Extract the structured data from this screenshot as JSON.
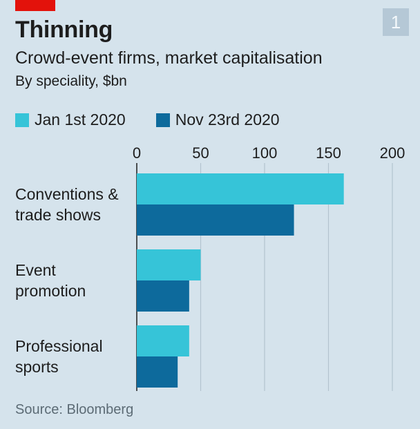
{
  "header": {
    "title": "Thinning",
    "subtitle": "Crowd-event firms, market capitalisation",
    "unit": "By speciality, $bn",
    "badge": "1"
  },
  "source": "Source: Bloomberg",
  "colors": {
    "series1": "#36c4d8",
    "series2": "#0d6a9c",
    "background": "#d5e3ec",
    "accent": "#e3120b"
  },
  "chart_data": {
    "type": "bar",
    "orientation": "horizontal",
    "title": "Thinning",
    "subtitle": "Crowd-event firms, market capitalisation",
    "units": "By speciality, $bn",
    "categories": [
      "Conventions & trade shows",
      "Event promotion",
      "Professional sports"
    ],
    "category_lines": [
      [
        "Conventions &",
        "trade shows"
      ],
      [
        "Event",
        "promotion"
      ],
      [
        "Professional",
        "sports"
      ]
    ],
    "series": [
      {
        "name": "Jan 1st 2020",
        "values": [
          162,
          50,
          41
        ]
      },
      {
        "name": "Nov 23rd 2020",
        "values": [
          123,
          41,
          32
        ]
      }
    ],
    "xlim": [
      0,
      200
    ],
    "xticks": [
      0,
      50,
      100,
      150,
      200
    ],
    "tick_labels": [
      "0",
      "50",
      "100",
      "150",
      "200"
    ],
    "grid": true,
    "legend_position": "top-left"
  }
}
